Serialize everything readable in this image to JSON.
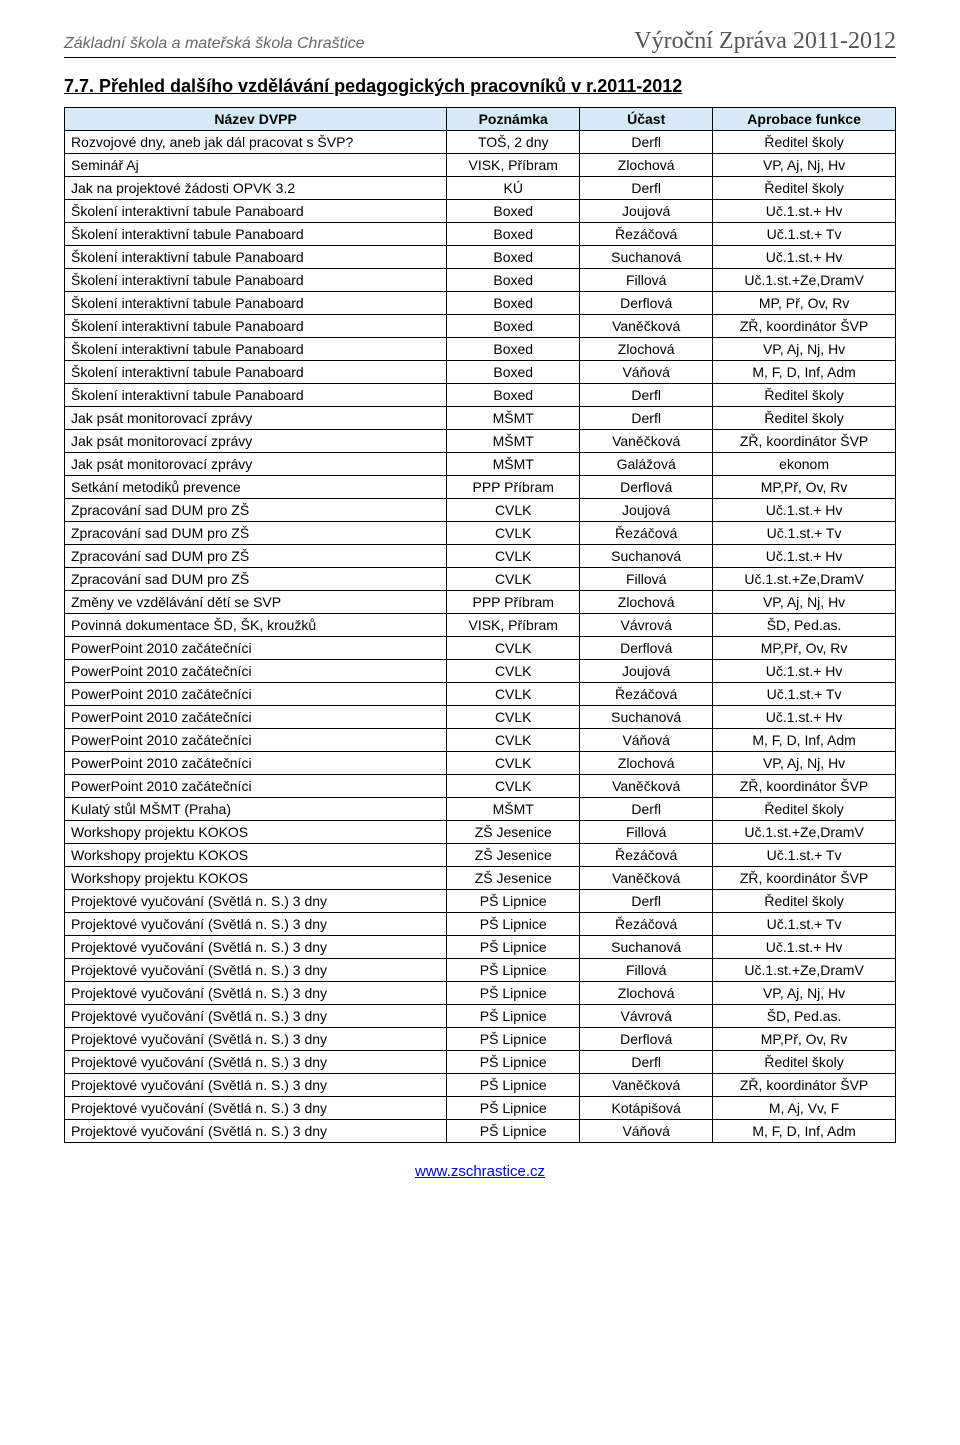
{
  "header": {
    "left": "Základní škola a mateřská škola Chraštice",
    "right": "Výroční Zpráva 2011-2012"
  },
  "section_heading": "7.7. Přehled dalšího vzdělávání pedagogických pracovníků v r.2011-2012",
  "table": {
    "headers": [
      "Název DVPP",
      "Poznámka",
      "Účast",
      "Aprobace funkce"
    ],
    "header_bg": "#d6e9f6",
    "border_color": "#000000",
    "font_size": 14,
    "col_widths_pct": [
      46,
      16,
      16,
      22
    ],
    "rows": [
      [
        "Rozvojové dny, aneb jak dál pracovat s ŠVP?",
        "TOŠ, 2 dny",
        "Derfl",
        "Ředitel školy"
      ],
      [
        "Seminář Aj",
        "VISK, Příbram",
        "Zlochová",
        "VP, Aj, Nj, Hv"
      ],
      [
        "Jak na projektové žádosti OPVK 3.2",
        "KÚ",
        "Derfl",
        "Ředitel školy"
      ],
      [
        "Školení interaktivní tabule Panaboard",
        "Boxed",
        "Joujová",
        "Uč.1.st.+ Hv"
      ],
      [
        "Školení interaktivní tabule Panaboard",
        "Boxed",
        "Řezáčová",
        "Uč.1.st.+ Tv"
      ],
      [
        "Školení interaktivní tabule Panaboard",
        "Boxed",
        "Suchanová",
        "Uč.1.st.+ Hv"
      ],
      [
        "Školení interaktivní tabule Panaboard",
        "Boxed",
        "Fillová",
        "Uč.1.st.+Ze,DramV"
      ],
      [
        "Školení interaktivní tabule Panaboard",
        "Boxed",
        "Derflová",
        "MP, Př, Ov, Rv"
      ],
      [
        "Školení interaktivní tabule Panaboard",
        "Boxed",
        "Vaněčková",
        "ZŘ, koordinátor ŠVP"
      ],
      [
        "Školení interaktivní tabule Panaboard",
        "Boxed",
        "Zlochová",
        "VP, Aj, Nj, Hv"
      ],
      [
        "Školení interaktivní tabule Panaboard",
        "Boxed",
        "Váňová",
        "M, F, D, Inf, Adm"
      ],
      [
        "Školení interaktivní tabule Panaboard",
        "Boxed",
        "Derfl",
        "Ředitel školy"
      ],
      [
        "Jak psát monitorovací zprávy",
        "MŠMT",
        "Derfl",
        "Ředitel školy"
      ],
      [
        "Jak psát monitorovací zprávy",
        "MŠMT",
        "Vaněčková",
        "ZŘ, koordinátor ŠVP"
      ],
      [
        "Jak psát monitorovací zprávy",
        "MŠMT",
        "Galážová",
        "ekonom"
      ],
      [
        "Setkání metodiků prevence",
        "PPP Příbram",
        "Derflová",
        "MP,Př, Ov, Rv"
      ],
      [
        "Zpracování sad DUM pro ZŠ",
        "CVLK",
        "Joujová",
        "Uč.1.st.+ Hv"
      ],
      [
        "Zpracování sad DUM pro ZŠ",
        "CVLK",
        "Řezáčová",
        "Uč.1.st.+ Tv"
      ],
      [
        "Zpracování sad DUM pro ZŠ",
        "CVLK",
        "Suchanová",
        "Uč.1.st.+ Hv"
      ],
      [
        "Zpracování sad DUM pro ZŠ",
        "CVLK",
        "Fillová",
        "Uč.1.st.+Ze,DramV"
      ],
      [
        "Změny ve vzdělávání dětí se SVP",
        "PPP Příbram",
        "Zlochová",
        "VP, Aj, Nj, Hv"
      ],
      [
        "Povinná dokumentace ŠD, ŠK, kroužků",
        "VISK, Příbram",
        "Vávrová",
        "ŠD, Ped.as."
      ],
      [
        "PowerPoint 2010 začátečníci",
        "CVLK",
        "Derflová",
        "MP,Př, Ov, Rv"
      ],
      [
        "PowerPoint 2010 začátečníci",
        "CVLK",
        "Joujová",
        "Uč.1.st.+ Hv"
      ],
      [
        "PowerPoint 2010 začátečníci",
        "CVLK",
        "Řezáčová",
        "Uč.1.st.+ Tv"
      ],
      [
        "PowerPoint 2010 začátečníci",
        "CVLK",
        "Suchanová",
        "Uč.1.st.+ Hv"
      ],
      [
        "PowerPoint 2010 začátečníci",
        "CVLK",
        "Váňová",
        "M, F, D, Inf, Adm"
      ],
      [
        "PowerPoint 2010 začátečníci",
        "CVLK",
        "Zlochová",
        "VP, Aj, Nj, Hv"
      ],
      [
        "PowerPoint 2010 začátečníci",
        "CVLK",
        "Vaněčková",
        "ZŘ, koordinátor ŠVP"
      ],
      [
        "Kulatý stůl MŠMT (Praha)",
        "MŠMT",
        "Derfl",
        "Ředitel školy"
      ],
      [
        "Workshopy projektu KOKOS",
        "ZŠ Jesenice",
        "Fillová",
        "Uč.1.st.+Ze,DramV"
      ],
      [
        "Workshopy projektu KOKOS",
        "ZŠ Jesenice",
        "Řezáčová",
        "Uč.1.st.+ Tv"
      ],
      [
        "Workshopy projektu KOKOS",
        "ZŠ Jesenice",
        "Vaněčková",
        "ZŘ, koordinátor ŠVP"
      ],
      [
        "Projektové vyučování (Světlá n. S.) 3 dny",
        "PŠ Lipnice",
        "Derfl",
        "Ředitel školy"
      ],
      [
        "Projektové vyučování (Světlá n. S.) 3 dny",
        "PŠ Lipnice",
        "Řezáčová",
        "Uč.1.st.+ Tv"
      ],
      [
        "Projektové vyučování (Světlá n. S.) 3 dny",
        "PŠ Lipnice",
        "Suchanová",
        "Uč.1.st.+ Hv"
      ],
      [
        "Projektové vyučování (Světlá n. S.) 3 dny",
        "PŠ Lipnice",
        "Fillová",
        "Uč.1.st.+Ze,DramV"
      ],
      [
        "Projektové vyučování (Světlá n. S.) 3 dny",
        "PŠ Lipnice",
        "Zlochová",
        "VP, Aj, Nj, Hv"
      ],
      [
        "Projektové vyučování (Světlá n. S.) 3 dny",
        "PŠ Lipnice",
        "Vávrová",
        "ŠD, Ped.as."
      ],
      [
        "Projektové vyučování (Světlá n. S.) 3 dny",
        "PŠ Lipnice",
        "Derflová",
        "MP,Př, Ov, Rv"
      ],
      [
        "Projektové vyučování (Světlá n. S.) 3 dny",
        "PŠ Lipnice",
        "Derfl",
        "Ředitel školy"
      ],
      [
        "Projektové vyučování (Světlá n. S.) 3 dny",
        "PŠ Lipnice",
        "Vaněčková",
        "ZŘ, koordinátor ŠVP"
      ],
      [
        "Projektové vyučování (Světlá n. S.) 3 dny",
        "PŠ Lipnice",
        "Kotápišová",
        "M, Aj, Vv, F"
      ],
      [
        "Projektové vyučování (Světlá n. S.) 3 dny",
        "PŠ Lipnice",
        "Váňová",
        "M, F, D, Inf, Adm"
      ]
    ]
  },
  "footer": {
    "url": "www.zschrastice.cz"
  }
}
